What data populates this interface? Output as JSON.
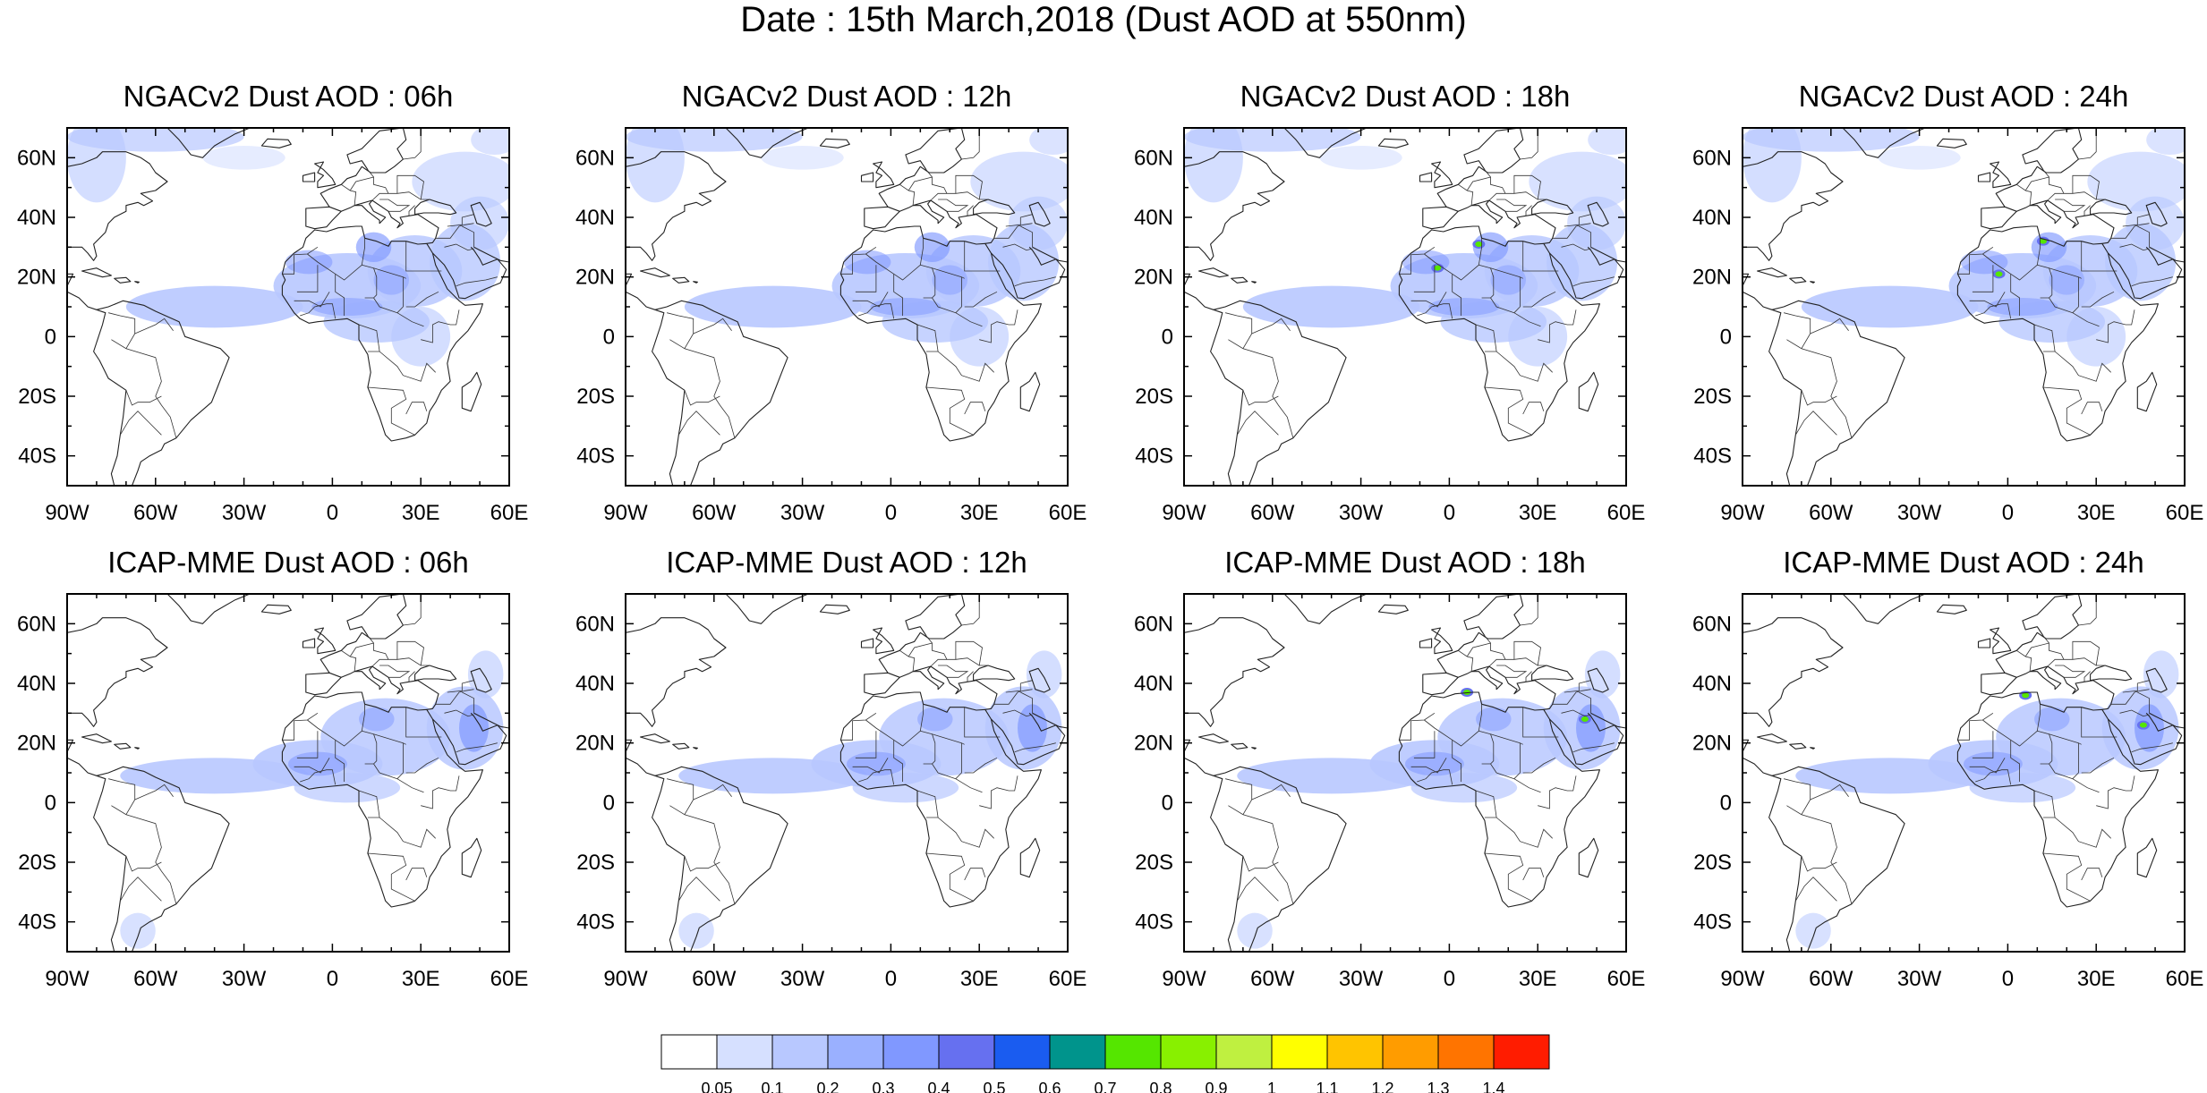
{
  "title": "Date : 15th March,2018 (Dust AOD at 550nm)",
  "lat_labels": [
    "60N",
    "40N",
    "20N",
    "0",
    "20S",
    "40S"
  ],
  "lon_labels": [
    "90W",
    "60W",
    "30W",
    "0",
    "30E",
    "60E"
  ],
  "panels": [
    {
      "title": "NGACv2 Dust AOD : 06h"
    },
    {
      "title": "NGACv2 Dust AOD : 12h"
    },
    {
      "title": "NGACv2 Dust AOD : 18h"
    },
    {
      "title": "NGACv2 Dust AOD : 24h"
    },
    {
      "title": "ICAP-MME Dust AOD : 06h"
    },
    {
      "title": "ICAP-MME Dust AOD : 12h"
    },
    {
      "title": "ICAP-MME Dust AOD : 18h"
    },
    {
      "title": "ICAP-MME Dust AOD : 24h"
    }
  ],
  "colorbar": {
    "colors": [
      "#ffffff",
      "#d6e0ff",
      "#b8c8ff",
      "#9ab0ff",
      "#8098ff",
      "#6670f0",
      "#1a5cf0",
      "#00948c",
      "#55e600",
      "#88f000",
      "#bff040",
      "#ffff00",
      "#ffc400",
      "#ff9c00",
      "#ff7400",
      "#ff1c00"
    ],
    "labels": [
      "0.05",
      "0.1",
      "0.2",
      "0.3",
      "0.4",
      "0.5",
      "0.6",
      "0.7",
      "0.8",
      "0.9",
      "1",
      "1.1",
      "1.2",
      "1.3",
      "1.4"
    ]
  }
}
